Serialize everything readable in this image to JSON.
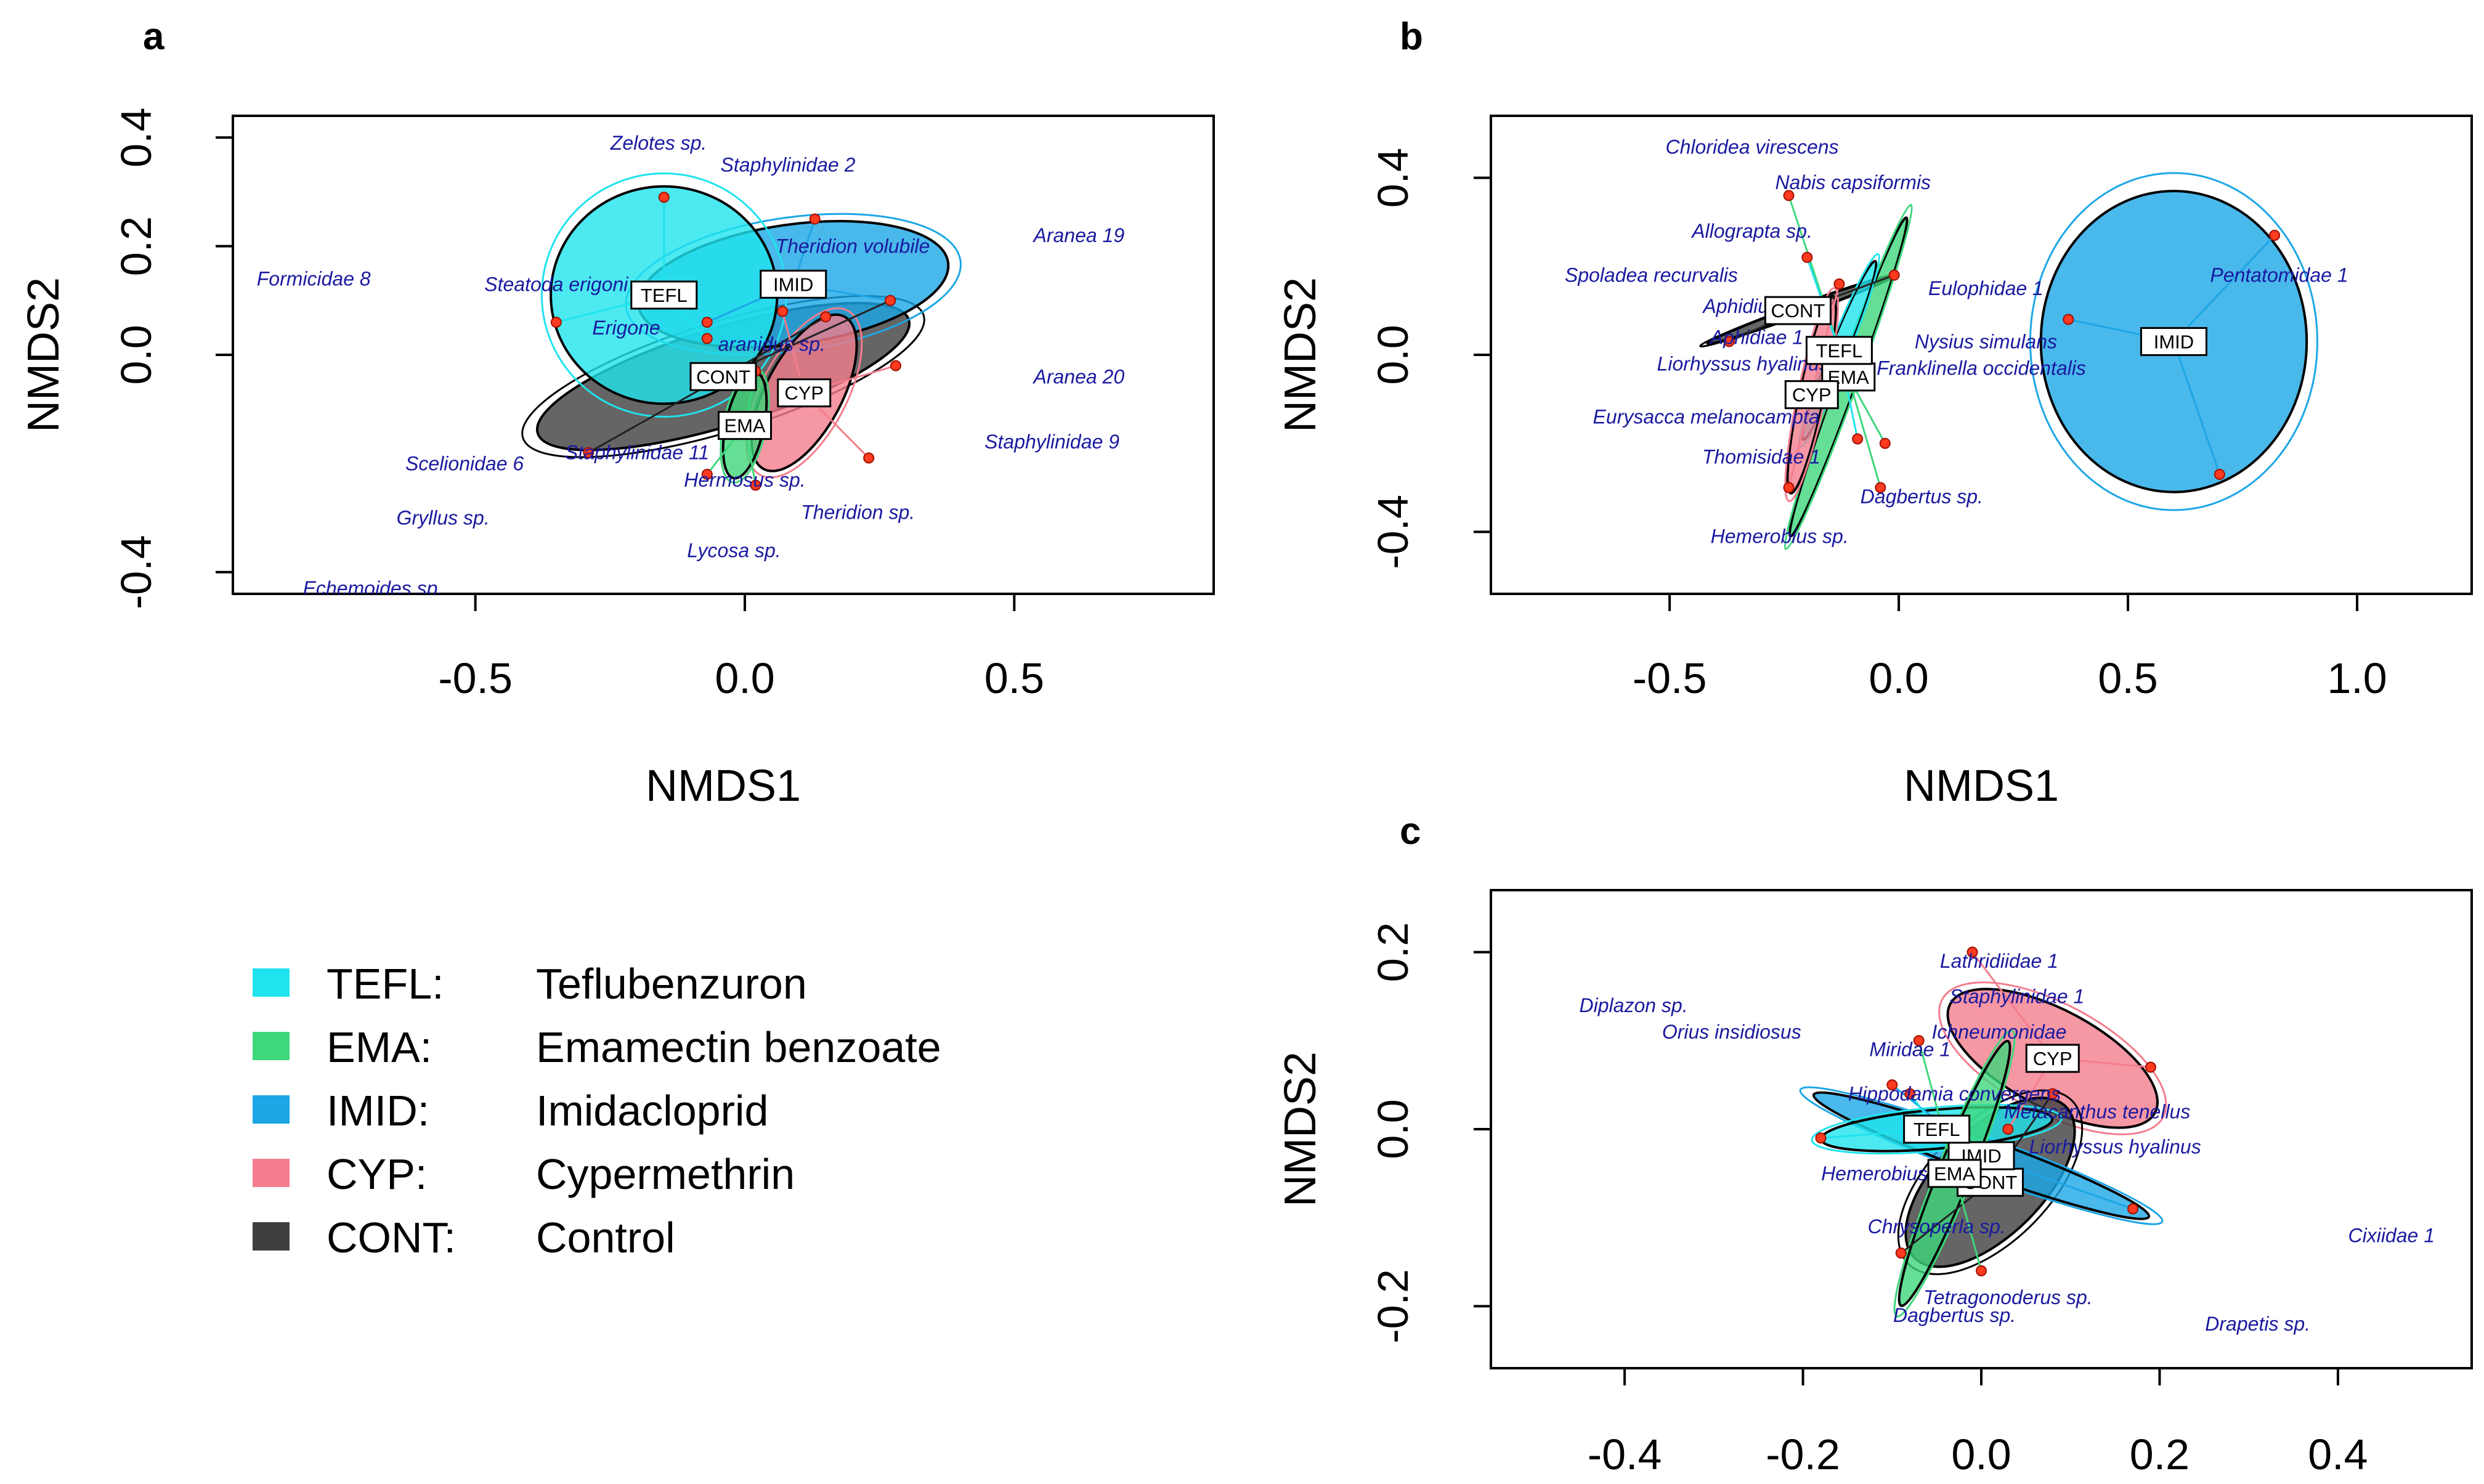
{
  "legend": {
    "items": [
      {
        "key": "TEFL",
        "code": "TEFL:",
        "name": "Teflubenzuron",
        "color": "#1fe3ee"
      },
      {
        "key": "EMA",
        "code": "EMA:",
        "name": "Emamectin benzoate",
        "color": "#3ed77c"
      },
      {
        "key": "IMID",
        "code": "IMID:",
        "name": "Imidacloprid",
        "color": "#1ca6e6"
      },
      {
        "key": "CYP",
        "code": "CYP:",
        "name": "Cypermethrin",
        "color": "#f47d8d"
      },
      {
        "key": "CONT",
        "code": "CONT:",
        "name": "Control",
        "color": "#3f3f3f"
      }
    ]
  },
  "chart_data": [
    {
      "panel": "a",
      "type": "scatter",
      "xlabel": "NMDS1",
      "ylabel": "NMDS2",
      "xlim": [
        -0.95,
        0.87
      ],
      "ylim": [
        -0.44,
        0.44
      ],
      "xticks": [
        {
          "v": -0.5,
          "label": "-0.5"
        },
        {
          "v": 0.0,
          "label": "0.0"
        },
        {
          "v": 0.5,
          "label": "0.5"
        }
      ],
      "yticks": [
        {
          "v": -0.4,
          "label": "-0.4"
        },
        {
          "v": 0.0,
          "label": "0.0"
        },
        {
          "v": 0.2,
          "label": "0.2"
        },
        {
          "v": 0.4,
          "label": "0.4"
        }
      ],
      "groups": [
        {
          "key": "CONT",
          "label": "CONT",
          "centroid": [
            -0.04,
            -0.04
          ],
          "ellipse": {
            "rx": 0.36,
            "ry": 0.09,
            "angle": 17
          },
          "points": [
            [
              -0.29,
              -0.18
            ],
            [
              0.27,
              0.1
            ],
            [
              0.15,
              0.07
            ]
          ]
        },
        {
          "key": "IMID",
          "label": "IMID",
          "centroid": [
            0.09,
            0.13
          ],
          "ellipse": {
            "rx": 0.29,
            "ry": 0.11,
            "angle": 8
          },
          "points": [
            [
              0.13,
              0.25
            ],
            [
              -0.07,
              0.06
            ],
            [
              0.27,
              0.1
            ]
          ]
        },
        {
          "key": "TEFL",
          "label": "TEFL",
          "centroid": [
            -0.15,
            0.11
          ],
          "ellipse": {
            "rx": 0.21,
            "ry": 0.2,
            "angle": 0
          },
          "points": [
            [
              -0.15,
              0.29
            ],
            [
              -0.35,
              0.06
            ],
            [
              -0.07,
              0.03
            ]
          ]
        },
        {
          "key": "CYP",
          "label": "CYP",
          "centroid": [
            0.11,
            -0.07
          ],
          "ellipse": {
            "rx": 0.16,
            "ry": 0.07,
            "angle": 62
          },
          "points": [
            [
              0.23,
              -0.19
            ],
            [
              0.28,
              -0.02
            ],
            [
              0.07,
              0.08
            ]
          ]
        },
        {
          "key": "EMA",
          "label": "EMA",
          "centroid": [
            0.0,
            -0.13
          ],
          "ellipse": {
            "rx": 0.1,
            "ry": 0.035,
            "angle": 78
          },
          "points": [
            [
              -0.07,
              -0.22
            ],
            [
              0.02,
              -0.24
            ],
            [
              0.02,
              -0.03
            ]
          ]
        }
      ],
      "species": [
        {
          "name": "Zelotes sp.",
          "x": -0.16,
          "y": 0.39
        },
        {
          "name": "Staphylinidae 2",
          "x": 0.08,
          "y": 0.35
        },
        {
          "name": "Aranea 19",
          "x": 0.62,
          "y": 0.22
        },
        {
          "name": "Formicidae 8",
          "x": -0.8,
          "y": 0.14
        },
        {
          "name": "Theridion volubile",
          "x": 0.2,
          "y": 0.2
        },
        {
          "name": "Steatoda erigoni",
          "x": -0.35,
          "y": 0.13
        },
        {
          "name": "Erigone",
          "x": -0.22,
          "y": 0.05
        },
        {
          "name": "aranidus sp.",
          "x": 0.05,
          "y": 0.02
        },
        {
          "name": "Aranea 20",
          "x": 0.62,
          "y": -0.04
        },
        {
          "name": "Staphylinidae 9",
          "x": 0.57,
          "y": -0.16
        },
        {
          "name": "Scelionidae 6",
          "x": -0.52,
          "y": -0.2
        },
        {
          "name": "Staphylinidae 11",
          "x": -0.2,
          "y": -0.18
        },
        {
          "name": "Hermosus sp.",
          "x": 0.0,
          "y": -0.23
        },
        {
          "name": "Gryllus sp.",
          "x": -0.56,
          "y": -0.3
        },
        {
          "name": "Theridion sp.",
          "x": 0.21,
          "y": -0.29
        },
        {
          "name": "Lycosa sp.",
          "x": -0.02,
          "y": -0.36
        },
        {
          "name": "Echemoides sp.",
          "x": -0.69,
          "y": -0.43
        }
      ]
    },
    {
      "panel": "b",
      "type": "scatter",
      "xlabel": "NMDS1",
      "ylabel": "NMDS2",
      "xlim": [
        -0.89,
        1.25
      ],
      "ylim": [
        -0.54,
        0.54
      ],
      "xticks": [
        {
          "v": -0.5,
          "label": "-0.5"
        },
        {
          "v": 0.0,
          "label": "0.0"
        },
        {
          "v": 0.5,
          "label": "0.5"
        },
        {
          "v": 1.0,
          "label": "1.0"
        }
      ],
      "yticks": [
        {
          "v": -0.4,
          "label": "-0.4"
        },
        {
          "v": 0.0,
          "label": "0.0"
        },
        {
          "v": 0.4,
          "label": "0.4"
        }
      ],
      "groups": [
        {
          "key": "IMID",
          "label": "IMID",
          "centroid": [
            0.6,
            0.03
          ],
          "ellipse": {
            "rx": 0.29,
            "ry": 0.34,
            "angle": 0
          },
          "points": [
            [
              0.82,
              0.27
            ],
            [
              0.37,
              0.08
            ],
            [
              0.7,
              -0.27
            ]
          ]
        },
        {
          "key": "CONT",
          "label": "CONT",
          "centroid": [
            -0.22,
            0.1
          ],
          "ellipse": {
            "rx": 0.21,
            "ry": 0.011,
            "angle": 20
          },
          "points": [
            [
              -0.37,
              0.03
            ],
            [
              -0.01,
              0.18
            ]
          ]
        },
        {
          "key": "EMA",
          "label": "EMA",
          "centroid": [
            -0.11,
            -0.05
          ],
          "ellipse": {
            "rx": 0.37,
            "ry": 0.022,
            "angle": 70
          },
          "points": [
            [
              -0.24,
              0.36
            ],
            [
              -0.03,
              -0.2
            ],
            [
              -0.04,
              -0.3
            ]
          ]
        },
        {
          "key": "TEFL",
          "label": "TEFL",
          "centroid": [
            -0.13,
            0.01
          ],
          "ellipse": {
            "rx": 0.21,
            "ry": 0.02,
            "angle": 68
          },
          "points": [
            [
              -0.2,
              0.22
            ],
            [
              -0.09,
              -0.19
            ]
          ]
        },
        {
          "key": "CYP",
          "label": "CYP",
          "centroid": [
            -0.19,
            -0.09
          ],
          "ellipse": {
            "rx": 0.22,
            "ry": 0.028,
            "angle": 78
          },
          "points": [
            [
              -0.24,
              -0.3
            ],
            [
              -0.13,
              0.16
            ]
          ]
        }
      ],
      "species": [
        {
          "name": "Chloridea virescens",
          "x": -0.32,
          "y": 0.47
        },
        {
          "name": "Nabis capsiformis",
          "x": -0.1,
          "y": 0.39
        },
        {
          "name": "Allograpta sp.",
          "x": -0.32,
          "y": 0.28
        },
        {
          "name": "Spoladea recurvalis",
          "x": -0.54,
          "y": 0.18
        },
        {
          "name": "Eulophidae 1",
          "x": 0.19,
          "y": 0.15
        },
        {
          "name": "Pentatomidae 1",
          "x": 0.83,
          "y": 0.18
        },
        {
          "name": "Aphidius sp.",
          "x": -0.31,
          "y": 0.11
        },
        {
          "name": "Aphidiae 1",
          "x": -0.31,
          "y": 0.04
        },
        {
          "name": "Nysius simulans",
          "x": 0.19,
          "y": 0.03
        },
        {
          "name": "Liorhyssus hyalinus",
          "x": -0.34,
          "y": -0.02
        },
        {
          "name": "Franklinella occidentalis",
          "x": 0.18,
          "y": -0.03
        },
        {
          "name": "Eurysacca melanocampta",
          "x": -0.42,
          "y": -0.14
        },
        {
          "name": "Thomisidae 1",
          "x": -0.3,
          "y": -0.23
        },
        {
          "name": "Dagbertus sp.",
          "x": 0.05,
          "y": -0.32
        },
        {
          "name": "Hemerobius sp.",
          "x": -0.26,
          "y": -0.41
        }
      ]
    },
    {
      "panel": "c",
      "type": "scatter",
      "xlabel": "",
      "ylabel": "NMDS2",
      "xlim": [
        -0.55,
        0.55
      ],
      "ylim": [
        -0.27,
        0.27
      ],
      "xticks": [
        {
          "v": -0.4,
          "label": "-0.4"
        },
        {
          "v": -0.2,
          "label": "-0.2"
        },
        {
          "v": 0.0,
          "label": "0.0"
        },
        {
          "v": 0.2,
          "label": "0.2"
        },
        {
          "v": 0.4,
          "label": "0.4"
        }
      ],
      "yticks": [
        {
          "v": -0.2,
          "label": "-0.2"
        },
        {
          "v": 0.0,
          "label": "0.0"
        },
        {
          "v": 0.2,
          "label": "0.2"
        }
      ],
      "groups": [
        {
          "key": "CYP",
          "label": "CYP",
          "centroid": [
            0.08,
            0.08
          ],
          "ellipse": {
            "rx": 0.13,
            "ry": 0.055,
            "angle": -28
          },
          "points": [
            [
              -0.01,
              0.2
            ],
            [
              0.19,
              0.07
            ],
            [
              0.03,
              -0.0
            ]
          ]
        },
        {
          "key": "CONT",
          "label": "CONT",
          "centroid": [
            0.01,
            -0.06
          ],
          "ellipse": {
            "rx": 0.12,
            "ry": 0.06,
            "angle": 45
          },
          "points": [
            [
              -0.09,
              -0.14
            ],
            [
              0.08,
              0.04
            ]
          ]
        },
        {
          "key": "IMID",
          "label": "IMID",
          "centroid": [
            0.0,
            -0.03
          ],
          "ellipse": {
            "rx": 0.2,
            "ry": 0.02,
            "angle": -20
          },
          "points": [
            [
              0.17,
              -0.09
            ],
            [
              -0.1,
              0.05
            ]
          ]
        },
        {
          "key": "TEFL",
          "label": "TEFL",
          "centroid": [
            -0.05,
            0.0
          ],
          "ellipse": {
            "rx": 0.13,
            "ry": 0.022,
            "angle": 5
          },
          "points": [
            [
              -0.18,
              -0.01
            ],
            [
              -0.08,
              0.04
            ]
          ]
        },
        {
          "key": "EMA",
          "label": "EMA",
          "centroid": [
            -0.03,
            -0.05
          ],
          "ellipse": {
            "rx": 0.16,
            "ry": 0.018,
            "angle": 68
          },
          "points": [
            [
              -0.07,
              0.1
            ],
            [
              0.0,
              -0.16
            ]
          ]
        }
      ],
      "species": [
        {
          "name": "Diplazon sp.",
          "x": -0.39,
          "y": 0.14
        },
        {
          "name": "Orius insidiosus",
          "x": -0.28,
          "y": 0.11
        },
        {
          "name": "Lathridiidae 1",
          "x": 0.02,
          "y": 0.19
        },
        {
          "name": "Staphylinidae 1",
          "x": 0.04,
          "y": 0.15
        },
        {
          "name": "Ichneumonidae",
          "x": 0.02,
          "y": 0.11
        },
        {
          "name": "Miridae 1",
          "x": -0.08,
          "y": 0.09
        },
        {
          "name": "Hippodamia convergens",
          "x": -0.03,
          "y": 0.04
        },
        {
          "name": "Metacanthus tenellus",
          "x": 0.13,
          "y": 0.02
        },
        {
          "name": "Liorhyssus hyalinus",
          "x": 0.15,
          "y": -0.02
        },
        {
          "name": "Hemerobius",
          "x": -0.12,
          "y": -0.05
        },
        {
          "name": "Chrysoperla sp.",
          "x": -0.05,
          "y": -0.11
        },
        {
          "name": "Cixiidae 1",
          "x": 0.46,
          "y": -0.12
        },
        {
          "name": "Tetragonoderus sp.",
          "x": 0.03,
          "y": -0.19
        },
        {
          "name": "Dagbertus sp.",
          "x": -0.03,
          "y": -0.21
        },
        {
          "name": "Drapetis sp.",
          "x": 0.31,
          "y": -0.22
        }
      ]
    }
  ]
}
